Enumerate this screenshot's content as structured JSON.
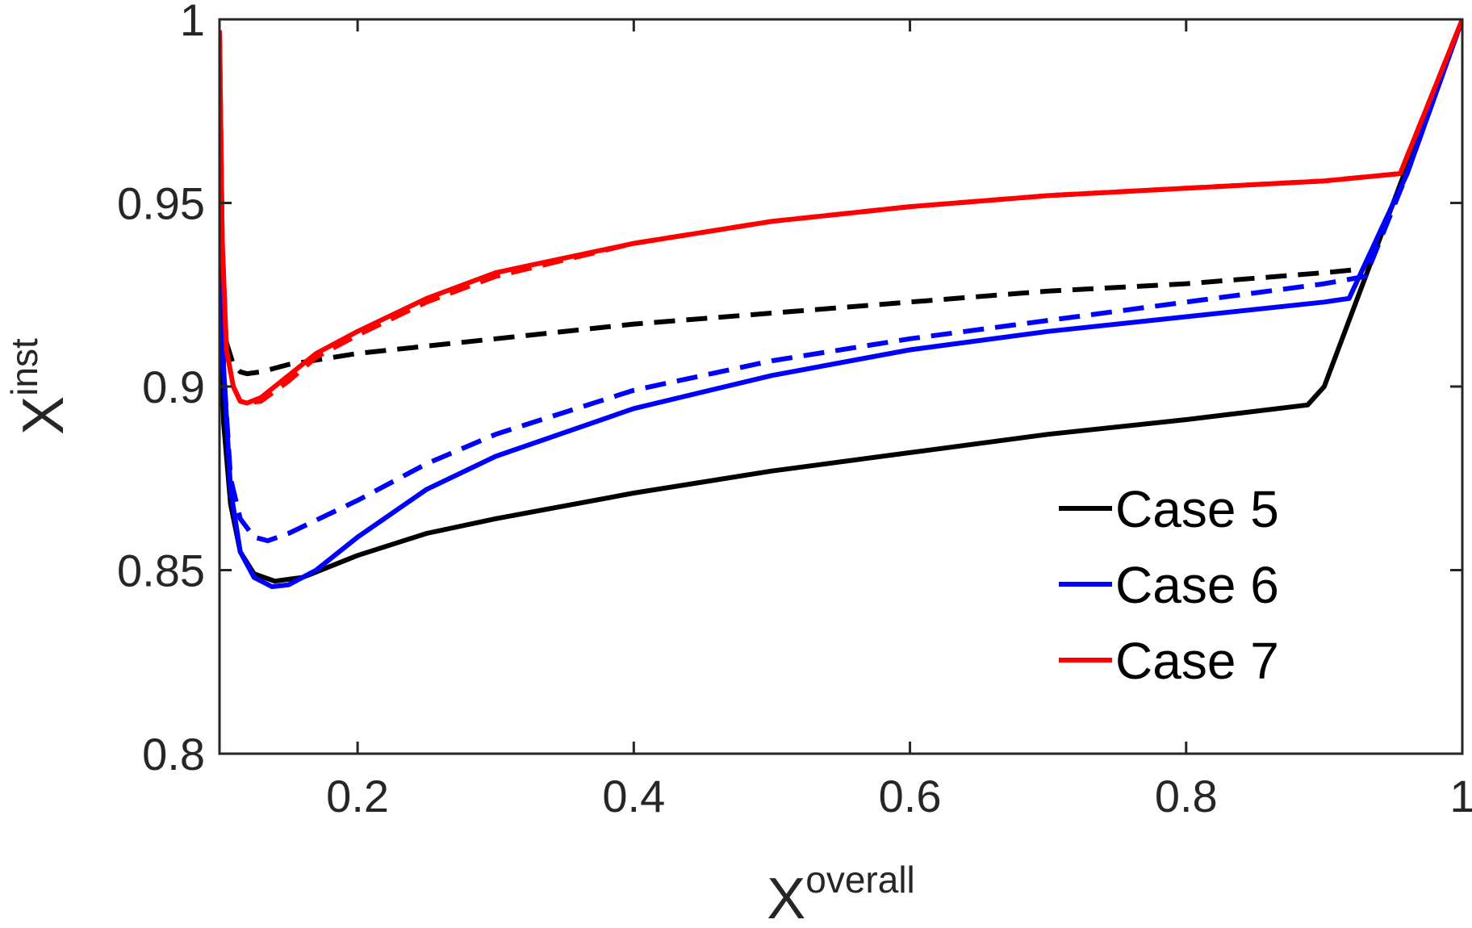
{
  "chart_data": {
    "type": "line",
    "title": "",
    "xlabel": {
      "base": "X",
      "sup": "overall"
    },
    "ylabel": {
      "base": "X",
      "sup": "inst"
    },
    "xlim": [
      0.1,
      1.0
    ],
    "ylim": [
      0.8,
      1.0
    ],
    "xticks": [
      0.2,
      0.4,
      0.6,
      0.8,
      1.0
    ],
    "xtick_labels": [
      "0.2",
      "0.4",
      "0.6",
      "0.8",
      "1"
    ],
    "yticks": [
      0.8,
      0.85,
      0.9,
      0.95,
      1.0
    ],
    "ytick_labels": [
      "0.8",
      "0.85",
      "0.9",
      "0.95",
      "1"
    ],
    "grid": false,
    "legend_position": "bottom-right",
    "series": [
      {
        "name": "Case 5",
        "color": "#000000",
        "style": "solid",
        "in_legend": true,
        "x": [
          0.1,
          0.103,
          0.108,
          0.115,
          0.125,
          0.14,
          0.16,
          0.2,
          0.25,
          0.3,
          0.4,
          0.5,
          0.6,
          0.7,
          0.8,
          0.888,
          0.9,
          0.95,
          1.0
        ],
        "y": [
          0.932,
          0.89,
          0.868,
          0.855,
          0.849,
          0.847,
          0.848,
          0.854,
          0.86,
          0.864,
          0.871,
          0.877,
          0.882,
          0.887,
          0.891,
          0.895,
          0.9,
          0.95,
          1.0
        ]
      },
      {
        "name": "Case 5 (dashed)",
        "color": "#000000",
        "style": "dashed",
        "in_legend": false,
        "x": [
          0.1,
          0.102,
          0.105,
          0.11,
          0.115,
          0.12,
          0.13,
          0.15,
          0.2,
          0.3,
          0.4,
          0.5,
          0.6,
          0.7,
          0.8,
          0.9,
          0.928,
          0.96,
          1.0
        ],
        "y": [
          0.965,
          0.93,
          0.912,
          0.906,
          0.904,
          0.9035,
          0.904,
          0.906,
          0.909,
          0.913,
          0.917,
          0.92,
          0.923,
          0.926,
          0.928,
          0.931,
          0.932,
          0.958,
          1.0
        ]
      },
      {
        "name": "Case 6",
        "color": "#0000ff",
        "style": "solid",
        "in_legend": true,
        "x": [
          0.1,
          0.103,
          0.108,
          0.115,
          0.125,
          0.138,
          0.15,
          0.17,
          0.2,
          0.25,
          0.3,
          0.4,
          0.5,
          0.6,
          0.7,
          0.8,
          0.9,
          0.918,
          0.96,
          1.0
        ],
        "y": [
          0.962,
          0.905,
          0.872,
          0.855,
          0.848,
          0.8455,
          0.846,
          0.85,
          0.859,
          0.872,
          0.881,
          0.894,
          0.903,
          0.91,
          0.915,
          0.919,
          0.923,
          0.924,
          0.958,
          1.0
        ]
      },
      {
        "name": "Case 6 (dashed)",
        "color": "#0000ff",
        "style": "dashed",
        "in_legend": false,
        "x": [
          0.1,
          0.103,
          0.108,
          0.115,
          0.125,
          0.135,
          0.15,
          0.2,
          0.25,
          0.3,
          0.4,
          0.5,
          0.6,
          0.7,
          0.8,
          0.9,
          0.93,
          0.96,
          1.0
        ],
        "y": [
          0.962,
          0.905,
          0.875,
          0.864,
          0.859,
          0.858,
          0.86,
          0.869,
          0.879,
          0.887,
          0.899,
          0.907,
          0.913,
          0.918,
          0.923,
          0.928,
          0.93,
          0.958,
          1.0
        ]
      },
      {
        "name": "Case 7",
        "color": "#ff0000",
        "style": "solid",
        "in_legend": true,
        "x": [
          0.1,
          0.102,
          0.105,
          0.11,
          0.115,
          0.12,
          0.13,
          0.15,
          0.17,
          0.2,
          0.25,
          0.3,
          0.4,
          0.5,
          0.6,
          0.7,
          0.8,
          0.9,
          0.955,
          1.0
        ],
        "y": [
          0.997,
          0.94,
          0.91,
          0.9,
          0.896,
          0.8955,
          0.897,
          0.903,
          0.909,
          0.915,
          0.924,
          0.931,
          0.939,
          0.945,
          0.949,
          0.952,
          0.954,
          0.956,
          0.958,
          1.0
        ]
      },
      {
        "name": "Case 7 (dashed)",
        "color": "#ff0000",
        "style": "dashed",
        "in_legend": false,
        "x": [
          0.1,
          0.102,
          0.105,
          0.11,
          0.115,
          0.12,
          0.13,
          0.15,
          0.17,
          0.2,
          0.25,
          0.3,
          0.4,
          0.5,
          0.6,
          0.7,
          0.8,
          0.9,
          0.955,
          1.0
        ],
        "y": [
          0.997,
          0.94,
          0.91,
          0.9,
          0.896,
          0.8955,
          0.896,
          0.9015,
          0.908,
          0.914,
          0.923,
          0.93,
          0.939,
          0.945,
          0.949,
          0.952,
          0.954,
          0.956,
          0.958,
          1.0
        ]
      }
    ]
  }
}
